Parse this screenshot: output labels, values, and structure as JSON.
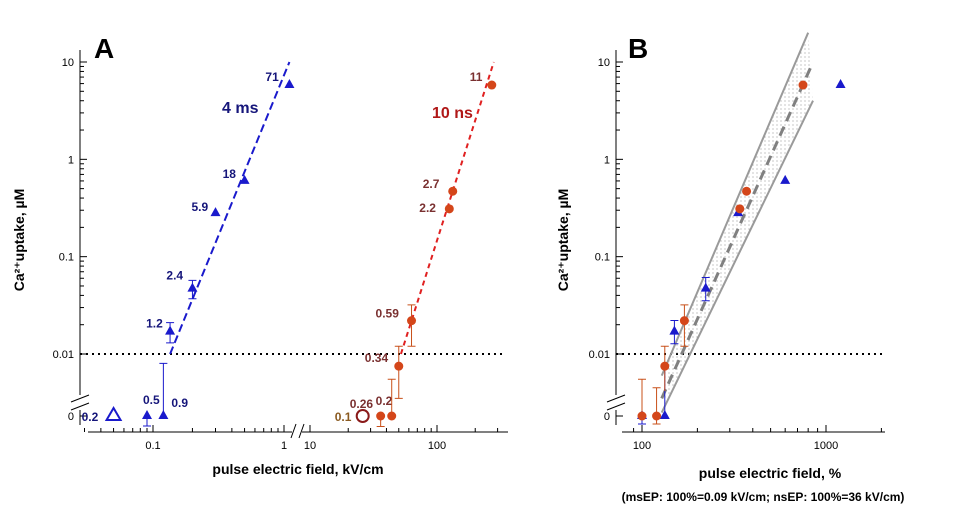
{
  "colors": {
    "ms": "#1a1acc",
    "ms_dark": "#15157a",
    "ns_point": "#d4461a",
    "ns_line": "#e02020",
    "ns_label": "#7a3030",
    "ns_errbar": "#c8501a",
    "fit": "#808080",
    "band": "#9a9a9a"
  },
  "panels": [
    {
      "letter": "A",
      "xlabel": "pulse electric field, kV/cm",
      "ylabel": "Ca²⁺uptake, µM"
    },
    {
      "letter": "B",
      "xlabel": "pulse electric field, %",
      "xnote": "(msEP: 100%=0.09 kV/cm; nsEP: 100%=36 kV/cm)",
      "ylabel": "Ca²⁺uptake, µM"
    }
  ],
  "y_ticks": [
    "0",
    "0.01",
    "0.1",
    "1",
    "10"
  ],
  "panelA_x_ticks": {
    "left": [
      "0.1",
      "1"
    ],
    "right": [
      "10",
      "100"
    ]
  },
  "panelB_x_ticks": [
    "100",
    "1000"
  ],
  "chart_data": [
    {
      "type": "scatter",
      "panel": "A",
      "yscale": "log",
      "ylim": [
        0.001,
        10
      ],
      "threshold_line": 0.01,
      "series": [
        {
          "name": "4 ms",
          "x_unit": "kV/cm",
          "points": [
            {
              "x": 0.05,
              "y": 0,
              "label": "0.2",
              "open": true
            },
            {
              "x": 0.09,
              "y": 0,
              "err": "low",
              "label": "0.5"
            },
            {
              "x": 0.12,
              "y": 0,
              "err": "0.9-high",
              "label": "0.9"
            },
            {
              "x": 0.135,
              "y": 0.017,
              "err": 0.004,
              "label": "1.2"
            },
            {
              "x": 0.2,
              "y": 0.047,
              "err": 0.01,
              "label": "2.4"
            },
            {
              "x": 0.3,
              "y": 0.28,
              "label": "5.9"
            },
            {
              "x": 0.5,
              "y": 0.6,
              "label": "18"
            },
            {
              "x": 1.1,
              "y": 5.8,
              "label": "71"
            }
          ],
          "fit": [
            [
              0.135,
              0.01
            ],
            [
              1.1,
              10
            ]
          ]
        },
        {
          "name": "10 ns",
          "x_unit": "kV/cm",
          "points": [
            {
              "x": 26,
              "y": 0,
              "label": "0.1",
              "open": true
            },
            {
              "x": 36,
              "y": 0,
              "err": "high",
              "label": "0.2"
            },
            {
              "x": 44,
              "y": 0,
              "err": "high",
              "label": "0.26"
            },
            {
              "x": 50,
              "y": 0.0075,
              "err": 0.004,
              "label": "0.34"
            },
            {
              "x": 63,
              "y": 0.022,
              "err": 0.01,
              "label": "0.59"
            },
            {
              "x": 125,
              "y": 0.31,
              "label": "2.2"
            },
            {
              "x": 133,
              "y": 0.47,
              "label": "2.7"
            },
            {
              "x": 270,
              "y": 5.8,
              "label": "11"
            }
          ],
          "fit": [
            [
              52,
              0.01
            ],
            [
              280,
              10
            ]
          ]
        }
      ]
    },
    {
      "type": "scatter",
      "panel": "B",
      "yscale": "log",
      "xscale": "log",
      "ylim": [
        0.001,
        10
      ],
      "xlim": [
        85,
        2000
      ],
      "threshold_line": 0.01,
      "series": [
        {
          "name": "msEP",
          "points": [
            {
              "x": 100,
              "y": 0,
              "err": "low"
            },
            {
              "x": 133,
              "y": 0
            },
            {
              "x": 150,
              "y": 0.017
            },
            {
              "x": 222,
              "y": 0.047
            },
            {
              "x": 333,
              "y": 0.28
            },
            {
              "x": 600,
              "y": 0.6
            },
            {
              "x": 1200,
              "y": 5.8
            }
          ]
        },
        {
          "name": "nsEP",
          "points": [
            {
              "x": 100,
              "y": 0,
              "err": "high"
            },
            {
              "x": 120,
              "y": 0
            },
            {
              "x": 133,
              "y": 0.0075
            },
            {
              "x": 170,
              "y": 0.022
            },
            {
              "x": 340,
              "y": 0.31
            },
            {
              "x": 370,
              "y": 0.47
            },
            {
              "x": 750,
              "y": 5.8
            }
          ]
        }
      ],
      "fit": [
        [
          128,
          0.0035
        ],
        [
          830,
          9
        ]
      ],
      "band_upper": [
        [
          128,
          0.006
        ],
        [
          800,
          20
        ]
      ],
      "band_lower": [
        [
          128,
          0.0025
        ],
        [
          850,
          4
        ]
      ]
    }
  ]
}
